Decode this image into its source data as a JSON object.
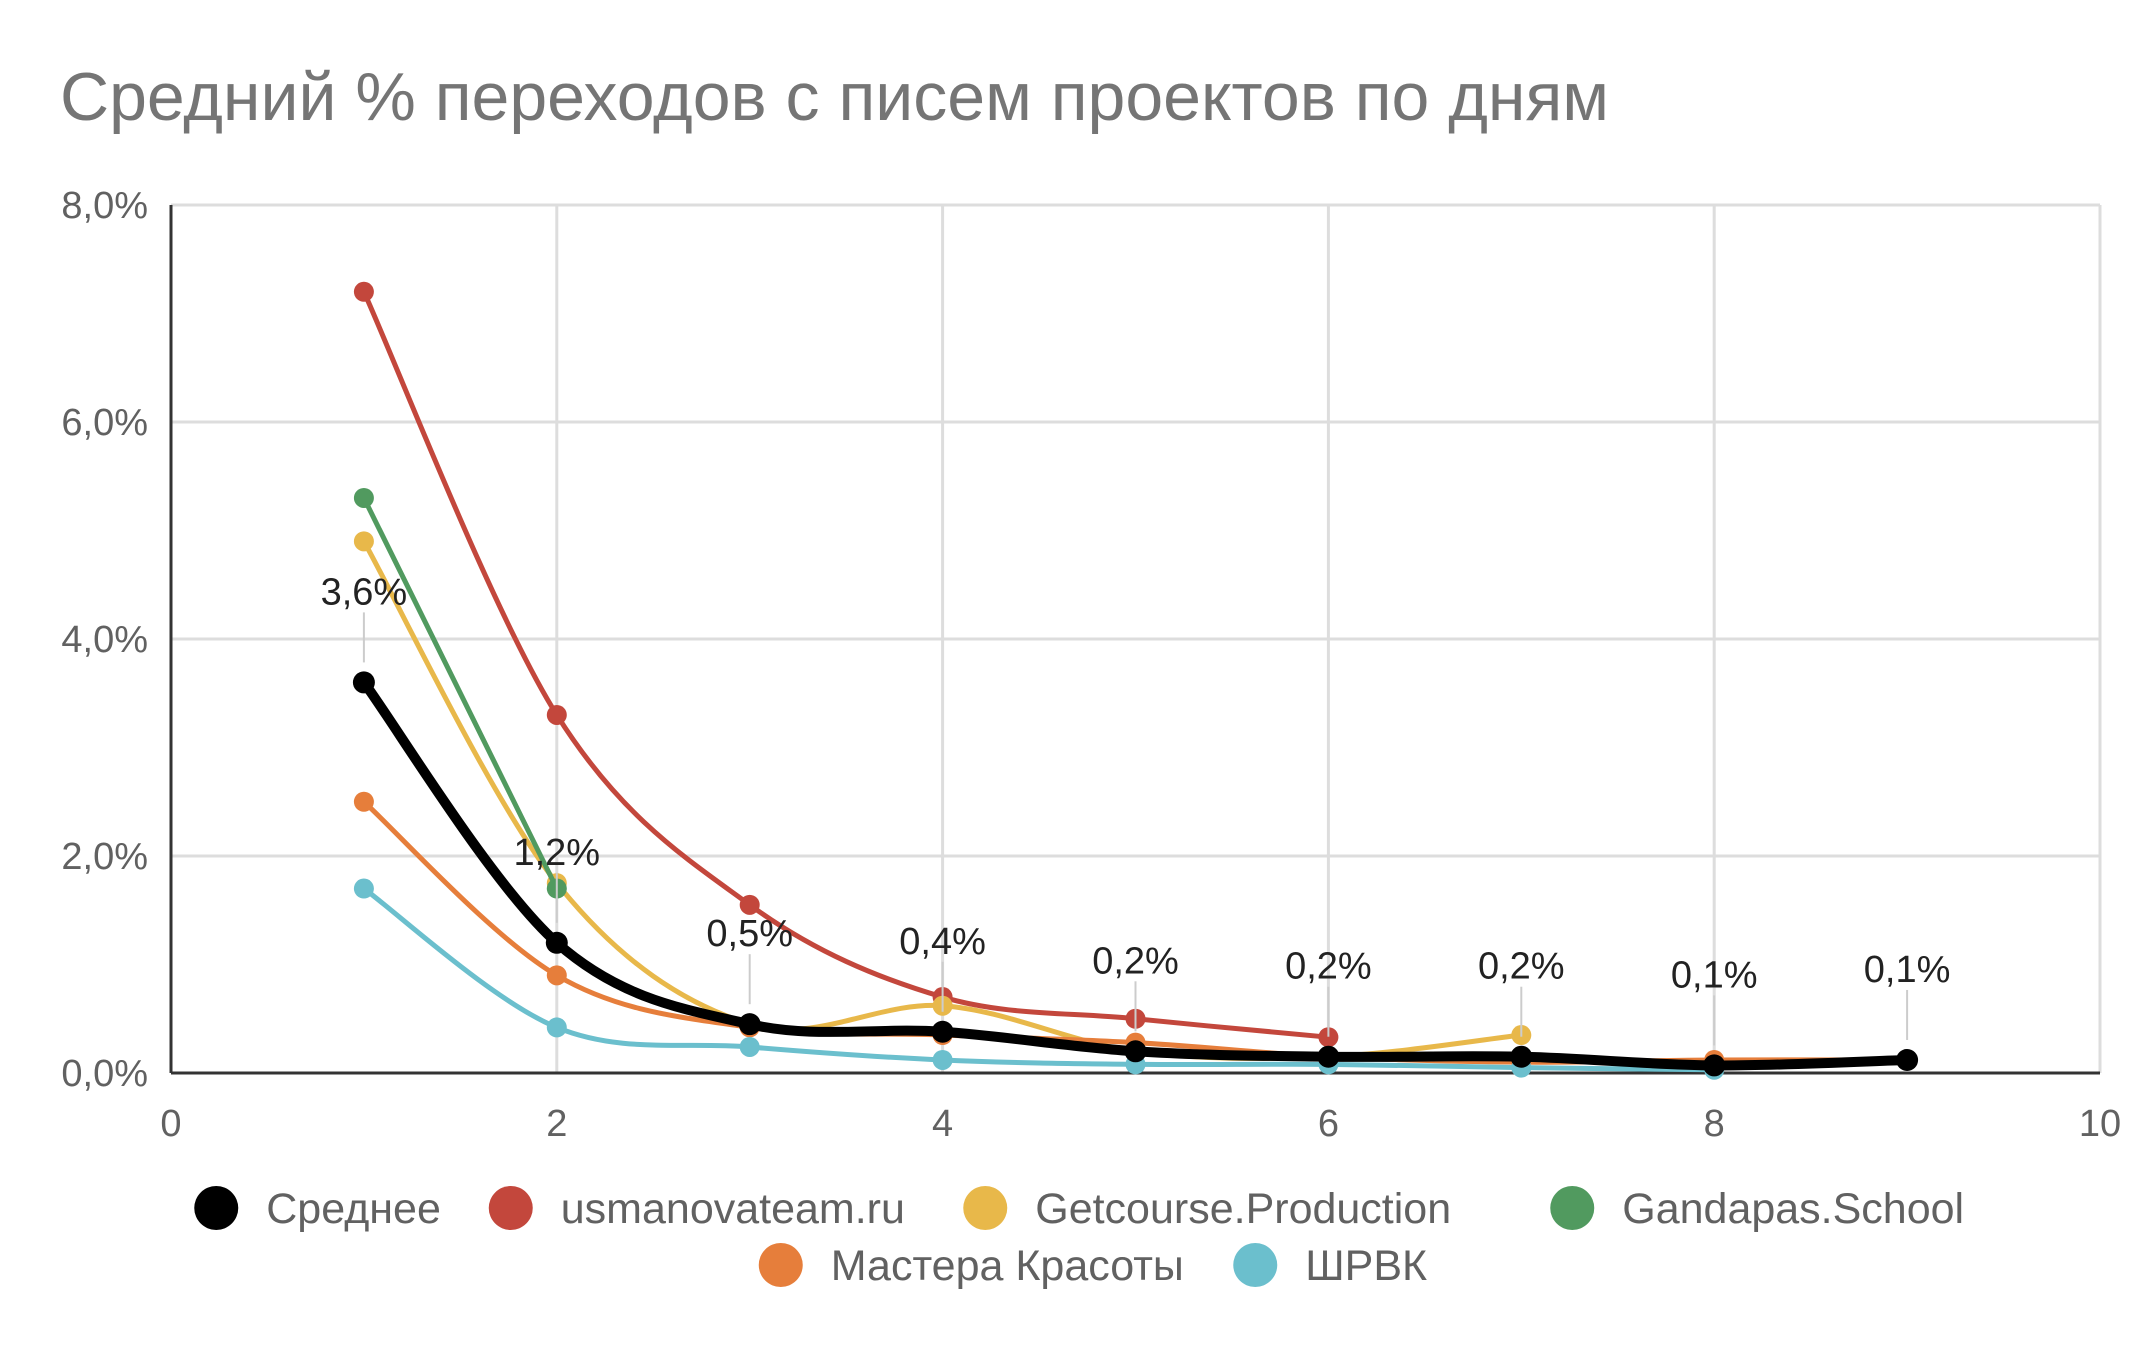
{
  "chart_data": {
    "type": "line",
    "title": "Средний % переходов с писем проектов по дням",
    "xlabel": "",
    "ylabel": "",
    "xlim": [
      0,
      10
    ],
    "ylim": [
      0,
      8
    ],
    "x_ticks": [
      "0",
      "2",
      "4",
      "6",
      "8",
      "10"
    ],
    "y_ticks": [
      "0,0%",
      "2,0%",
      "4,0%",
      "6,0%",
      "8,0%"
    ],
    "grid": true,
    "legend_position": "bottom",
    "series": [
      {
        "name": "Среднее",
        "color": "#000000",
        "x": [
          1,
          2,
          3,
          4,
          5,
          6,
          7,
          8,
          9
        ],
        "values": [
          3.6,
          1.2,
          0.45,
          0.38,
          0.2,
          0.15,
          0.15,
          0.07,
          0.12
        ]
      },
      {
        "name": "usmanovateam.ru",
        "color": "#c3473c",
        "x": [
          1,
          2,
          3,
          4,
          5,
          6
        ],
        "values": [
          7.2,
          3.3,
          1.55,
          0.7,
          0.5,
          0.33
        ]
      },
      {
        "name": "Getcourse.Production",
        "color": "#e8b84a",
        "x": [
          1,
          2,
          3,
          4,
          5,
          6,
          7
        ],
        "values": [
          4.9,
          1.75,
          0.45,
          0.62,
          0.2,
          0.15,
          0.35
        ]
      },
      {
        "name": "Gandapas.School",
        "color": "#519a5f",
        "x": [
          1,
          2
        ],
        "values": [
          5.3,
          1.7
        ]
      },
      {
        "name": "Мастера Красоты",
        "color": "#e67e3b",
        "x": [
          1,
          2,
          3,
          4,
          5,
          6,
          7,
          8,
          9
        ],
        "values": [
          2.5,
          0.9,
          0.42,
          0.35,
          0.28,
          0.15,
          0.1,
          0.12,
          0.12
        ]
      },
      {
        "name": "ШРВК",
        "color": "#6bbfcd",
        "x": [
          1,
          2,
          3,
          4,
          5,
          6,
          7,
          8
        ],
        "values": [
          1.7,
          0.42,
          0.24,
          0.12,
          0.08,
          0.08,
          0.05,
          0.03
        ]
      }
    ],
    "data_labels": [
      {
        "x": 1,
        "y": 3.6,
        "text": "3,6%"
      },
      {
        "x": 2,
        "y": 1.2,
        "text": "1,2%"
      },
      {
        "x": 3,
        "y": 0.45,
        "text": "0,5%"
      },
      {
        "x": 4,
        "y": 0.38,
        "text": "0,4%"
      },
      {
        "x": 5,
        "y": 0.2,
        "text": "0,2%"
      },
      {
        "x": 6,
        "y": 0.15,
        "text": "0,2%"
      },
      {
        "x": 7,
        "y": 0.15,
        "text": "0,2%"
      },
      {
        "x": 8,
        "y": 0.07,
        "text": "0,1%"
      },
      {
        "x": 9,
        "y": 0.12,
        "text": "0,1%"
      }
    ]
  }
}
